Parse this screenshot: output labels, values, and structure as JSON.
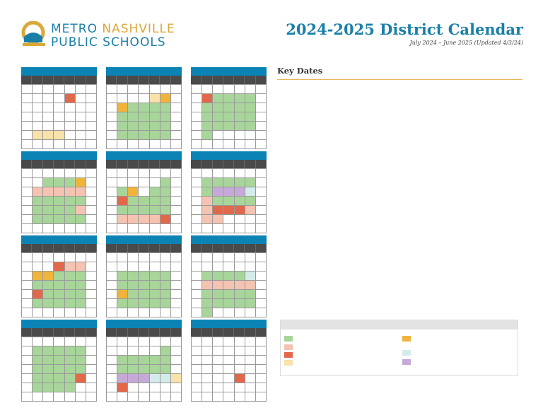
{
  "header": {
    "org_line1_a": "METRO",
    "org_line1_b": "NASHVILLE",
    "org_line2": "PUBLIC SCHOOLS",
    "title": "2024-2025 District Calendar",
    "subtitle": "July 2024 – June 2025 (Updated 4/3/24)"
  },
  "key_dates": {
    "heading": "Key Dates"
  },
  "colors": {
    "brand_blue": "#0b84b5",
    "brand_gold": "#d9a838",
    "g": "#a8d59a",
    "p": "#f4c3b2",
    "r": "#e2684b",
    "y": "#f8e1ab",
    "o": "#f0b43c",
    "l": "#c6a9d8",
    "t": "#d3ecea"
  },
  "months": [
    [
      "wwwwwww",
      "wwwwrww",
      "wwwwwww",
      "wwwwwww",
      "wwwwwww",
      "wyyywww",
      "wwwwwww"
    ],
    [
      "wwwwwww",
      "wwwwyow",
      "woggggw",
      "wggggg w",
      "wgggggw",
      "wgggggw",
      "wwwwwww"
    ],
    [
      "wwwwwww",
      "wrggggw",
      "wggggg w",
      "wgggggw",
      "wgggggw",
      "wgwwwww",
      "wwwwwww"
    ],
    [
      "wwwwwww",
      "wwgggow",
      "wpppppw",
      "wgggggw",
      "wggggpw",
      "wgggggw",
      "wwwwwww"
    ],
    [
      "wwwwwww",
      "wwwwwgw",
      "wgowggw",
      "wrggggw",
      "wgggggw",
      "wpppprw",
      "wwwwwww"
    ],
    [
      "wwwwwww",
      "wgggggw",
      "wgllltw",
      "wpggggw",
      "wprrrpw",
      "wppwwww",
      "wwwwwww"
    ],
    [
      "wwwwwww",
      "wwwrppw",
      "woogggw",
      "wgggggw",
      "wrggggw",
      "wgggggw",
      "wwwwwww"
    ],
    [
      "wwwwwww",
      "wwwwwww",
      "wgggggw",
      "wgggggw",
      "wogggg w",
      "wgggggw",
      "wwwwwww"
    ],
    [
      "wwwwwww",
      "wwwwwww",
      "wggggtw",
      "wpppppw",
      "wgggggw",
      "wgggggw",
      "wgwwwww"
    ],
    [
      "wwwwwww",
      "wgggggw",
      "wgggggw",
      "wgggggw",
      "wggggrw",
      "wggggww",
      "wwwwwww"
    ],
    [
      "wwwwwww",
      "wwwwwgw",
      "wgggggw",
      "wgggggw",
      "wlllttyw",
      "wrwwwww",
      "wwwwwww"
    ],
    [
      "wwwwwww",
      "wwwwwww",
      "wwwwwww",
      "wwwwwww",
      "wwwwrww",
      "wwwwwww",
      "wwwwwww"
    ]
  ],
  "legend_swatches": [
    {
      "color": "g"
    },
    {
      "color": "p"
    },
    {
      "color": "r"
    },
    {
      "color": "y"
    },
    {
      "color": "o"
    },
    {
      "color": "t"
    },
    {
      "color": "l"
    }
  ]
}
